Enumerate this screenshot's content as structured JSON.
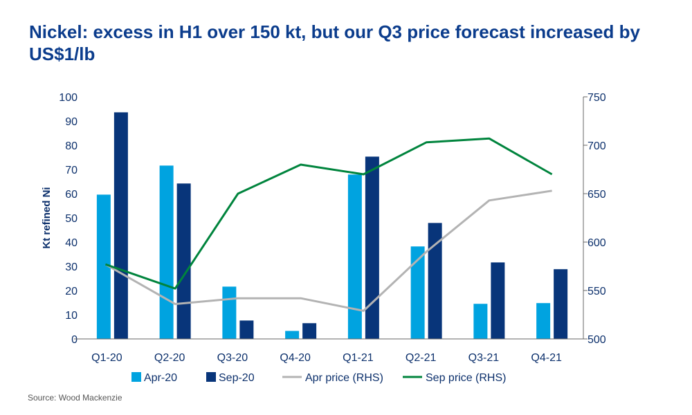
{
  "chart_data": {
    "type": "bar",
    "title": "Nickel: excess in H1 over 150 kt, but our Q3 price forecast increased by US$1/lb",
    "source": "Source: Wood Mackenzie",
    "ylabel": "Kt refined Ni",
    "ylim": [
      0,
      100
    ],
    "yticks": [
      "0",
      "10",
      "20",
      "30",
      "40",
      "50",
      "60",
      "70",
      "80",
      "90",
      "100"
    ],
    "y2lim": [
      500,
      750
    ],
    "y2ticks": [
      "500",
      "550",
      "600",
      "650",
      "700",
      "750"
    ],
    "categories": [
      "Q1-20",
      "Q2-20",
      "Q3-20",
      "Q4-20",
      "Q1-21",
      "Q2-21",
      "Q3-21",
      "Q4-21"
    ],
    "series": [
      {
        "name": "Apr-20",
        "type": "bar",
        "axis": "left",
        "color": "#00a3e0",
        "values": [
          59.6,
          71.6,
          21.6,
          3.3,
          67.9,
          38.2,
          14.5,
          14.8
        ]
      },
      {
        "name": "Sep-20",
        "type": "bar",
        "axis": "left",
        "color": "#08357a",
        "values": [
          93.6,
          64.2,
          7.6,
          6.5,
          75.3,
          47.9,
          31.6,
          28.8
        ]
      },
      {
        "name": "Apr price (RHS)",
        "type": "line",
        "axis": "right",
        "color": "#b3b3b3",
        "values": [
          577,
          536,
          542,
          542,
          529,
          590,
          643,
          653
        ]
      },
      {
        "name": "Sep price (RHS)",
        "type": "line",
        "axis": "right",
        "color": "#00843d",
        "values": [
          577,
          552,
          650,
          680,
          670,
          703,
          707,
          670
        ]
      }
    ],
    "grid": false,
    "legend": "bottom"
  }
}
